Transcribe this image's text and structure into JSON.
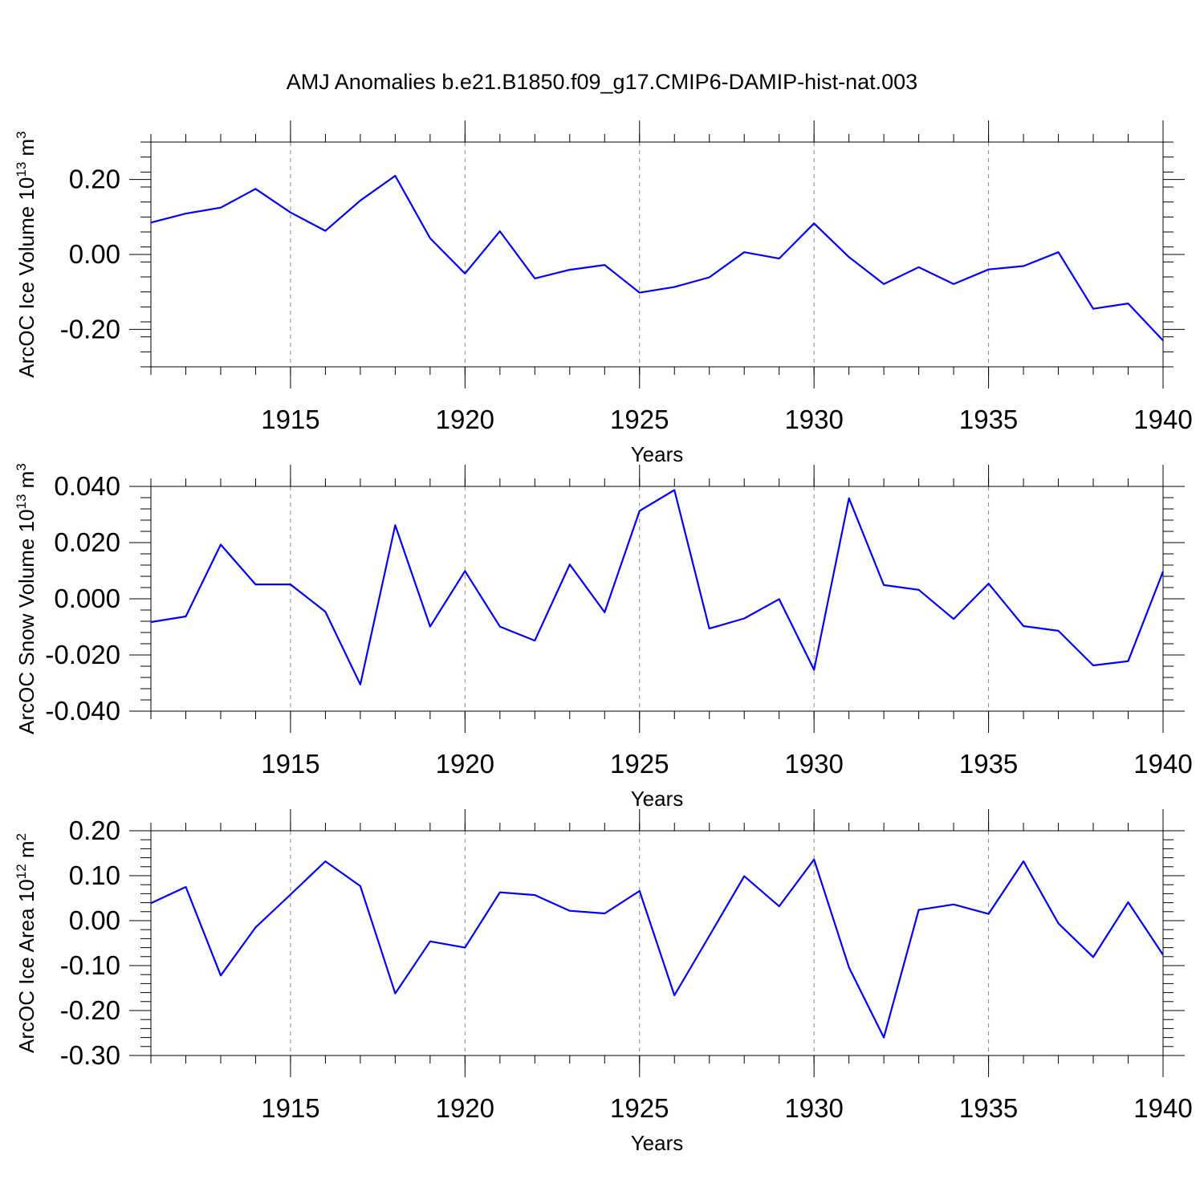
{
  "title": "AMJ Anomalies b.e21.B1850.f09_g17.CMIP6-DAMIP-hist-nat.003",
  "colors": {
    "series": "#0000ff",
    "axes": "#000000",
    "grid": "#888888"
  },
  "chart_data": [
    {
      "type": "line",
      "ylabel": "ArcOC Ice Volume 10",
      "yunit_exp": "13",
      "yunit_suffix": " m",
      "yunit_power": "3",
      "xlabel": "Years",
      "xlim": [
        1911,
        1940
      ],
      "ylim": [
        -0.3,
        0.3
      ],
      "xticks": [
        "1915",
        "1920",
        "1925",
        "1930",
        "1935",
        "1940"
      ],
      "yticks": [
        "0.20",
        "0.00",
        "-0.20"
      ],
      "ytick_values": [
        0.2,
        0.0,
        -0.2
      ],
      "grid": "vertical dashed at x tick marks",
      "x": [
        1911,
        1912,
        1913,
        1914,
        1915,
        1916,
        1917,
        1918,
        1919,
        1920,
        1921,
        1922,
        1923,
        1924,
        1925,
        1926,
        1927,
        1928,
        1929,
        1930,
        1931,
        1932,
        1933,
        1934,
        1935,
        1936,
        1937,
        1938,
        1939,
        1940
      ],
      "values": [
        0.085,
        0.109,
        0.125,
        0.175,
        0.112,
        0.063,
        0.144,
        0.21,
        0.043,
        -0.051,
        0.062,
        -0.064,
        -0.041,
        -0.028,
        -0.102,
        -0.087,
        -0.061,
        0.006,
        -0.011,
        0.083,
        -0.007,
        -0.079,
        -0.034,
        -0.079,
        -0.04,
        -0.031,
        0.006,
        -0.145,
        -0.131,
        -0.23
      ]
    },
    {
      "type": "line",
      "ylabel": "ArcOC Snow Volume 10",
      "yunit_exp": "13",
      "yunit_suffix": " m",
      "yunit_power": "3",
      "xlabel": "Years",
      "xlim": [
        1911,
        1940
      ],
      "ylim": [
        -0.04,
        0.04
      ],
      "xticks": [
        "1915",
        "1920",
        "1925",
        "1930",
        "1935",
        "1940"
      ],
      "yticks": [
        "0.040",
        "0.020",
        "0.000",
        "-0.020",
        "-0.040"
      ],
      "ytick_values": [
        0.04,
        0.02,
        0.0,
        -0.02,
        -0.04
      ],
      "grid": "vertical dashed at x tick marks",
      "x": [
        1911,
        1912,
        1913,
        1914,
        1915,
        1916,
        1917,
        1918,
        1919,
        1920,
        1921,
        1922,
        1923,
        1924,
        1925,
        1926,
        1927,
        1928,
        1929,
        1930,
        1931,
        1932,
        1933,
        1934,
        1935,
        1936,
        1937,
        1938,
        1939,
        1940
      ],
      "values": [
        -0.0083,
        -0.0063,
        0.0193,
        0.0051,
        0.0051,
        -0.0046,
        -0.0305,
        0.0262,
        -0.0099,
        0.0099,
        -0.0099,
        -0.0149,
        0.0122,
        -0.0048,
        0.0313,
        0.0387,
        -0.0106,
        -0.007,
        -0.0001,
        -0.0253,
        0.0358,
        0.0049,
        0.0032,
        -0.0072,
        0.0054,
        -0.0097,
        -0.0114,
        -0.0237,
        -0.0222,
        0.0097
      ]
    },
    {
      "type": "line",
      "ylabel": "ArcOC Ice Area 10",
      "yunit_exp": "12",
      "yunit_suffix": " m",
      "yunit_power": "2",
      "xlabel": "Years",
      "xlim": [
        1911,
        1940
      ],
      "ylim": [
        -0.3,
        0.2
      ],
      "xticks": [
        "1915",
        "1920",
        "1925",
        "1930",
        "1935",
        "1940"
      ],
      "yticks": [
        "0.20",
        "0.10",
        "0.00",
        "-0.10",
        "-0.20",
        "-0.30"
      ],
      "ytick_values": [
        0.2,
        0.1,
        0.0,
        -0.1,
        -0.2,
        -0.3
      ],
      "grid": "vertical dashed at x tick marks",
      "x": [
        1911,
        1912,
        1913,
        1914,
        1915,
        1916,
        1917,
        1918,
        1919,
        1920,
        1921,
        1922,
        1923,
        1924,
        1925,
        1926,
        1927,
        1928,
        1929,
        1930,
        1931,
        1932,
        1933,
        1934,
        1935,
        1936,
        1937,
        1938,
        1939,
        1940
      ],
      "values": [
        0.039,
        0.075,
        -0.122,
        -0.015,
        0.058,
        0.132,
        0.077,
        -0.162,
        -0.046,
        -0.06,
        0.063,
        0.057,
        0.022,
        0.016,
        0.066,
        -0.166,
        -0.034,
        0.099,
        0.032,
        0.136,
        -0.104,
        -0.26,
        0.024,
        0.036,
        0.015,
        0.132,
        -0.006,
        -0.081,
        0.041,
        -0.076
      ]
    }
  ]
}
